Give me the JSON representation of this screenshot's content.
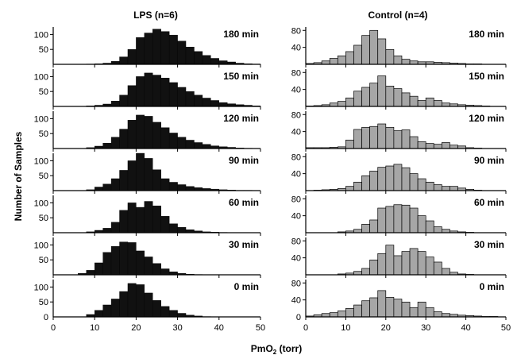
{
  "figure": {
    "y_label": "Number of Samples",
    "x_label_main": "PmO",
    "x_label_sub": "2",
    "x_label_rest": " (torr)"
  },
  "chart_data": [
    {
      "type": "bar",
      "title": "LPS (n=6)",
      "fill": "#111111",
      "bin_width": 2,
      "xlim": [
        0,
        50
      ],
      "ylim": [
        0,
        125
      ],
      "xticks": [
        0,
        10,
        20,
        30,
        40,
        50
      ],
      "yticks": [
        50,
        100
      ],
      "panels": [
        {
          "label": "180 min",
          "bin_starts": [
            0,
            2,
            4,
            6,
            8,
            10,
            12,
            14,
            16,
            18,
            20,
            22,
            24,
            26,
            28,
            30,
            32,
            34,
            36,
            38,
            40,
            42,
            44,
            46,
            48
          ],
          "values": [
            0,
            0,
            0,
            0,
            1,
            2,
            4,
            10,
            25,
            50,
            90,
            105,
            118,
            110,
            98,
            78,
            58,
            43,
            30,
            20,
            12,
            8,
            4,
            2,
            1
          ]
        },
        {
          "label": "150 min",
          "bin_starts": [
            0,
            2,
            4,
            6,
            8,
            10,
            12,
            14,
            16,
            18,
            20,
            22,
            24,
            26,
            28,
            30,
            32,
            34,
            36,
            38,
            40,
            42,
            44,
            46,
            48
          ],
          "values": [
            0,
            0,
            0,
            0,
            2,
            4,
            8,
            18,
            38,
            70,
            100,
            112,
            105,
            95,
            80,
            64,
            50,
            38,
            28,
            20,
            13,
            9,
            6,
            4,
            2
          ]
        },
        {
          "label": "120 min",
          "bin_starts": [
            0,
            2,
            4,
            6,
            8,
            10,
            12,
            14,
            16,
            18,
            20,
            22,
            24,
            26,
            28,
            30,
            32,
            34,
            36,
            38,
            40,
            42,
            44,
            46,
            48
          ],
          "values": [
            0,
            0,
            0,
            0,
            3,
            8,
            18,
            38,
            65,
            95,
            112,
            108,
            88,
            70,
            52,
            38,
            28,
            20,
            14,
            9,
            6,
            4,
            2,
            1,
            0
          ]
        },
        {
          "label": "90 min",
          "bin_starts": [
            0,
            2,
            4,
            6,
            8,
            10,
            12,
            14,
            16,
            18,
            20,
            22,
            24,
            26,
            28,
            30,
            32,
            34,
            36,
            38,
            40,
            42,
            44,
            46,
            48
          ],
          "values": [
            0,
            0,
            0,
            0,
            3,
            12,
            22,
            40,
            68,
            100,
            125,
            108,
            70,
            40,
            28,
            20,
            14,
            10,
            7,
            5,
            3,
            2,
            1,
            1,
            0
          ]
        },
        {
          "label": "60 min",
          "bin_starts": [
            0,
            2,
            4,
            6,
            8,
            10,
            12,
            14,
            16,
            18,
            20,
            22,
            24,
            26,
            28,
            30,
            32,
            34,
            36,
            38,
            40,
            42,
            44,
            46,
            48
          ],
          "values": [
            0,
            0,
            0,
            0,
            3,
            8,
            15,
            35,
            75,
            100,
            85,
            105,
            90,
            55,
            30,
            18,
            10,
            6,
            3,
            2,
            1,
            0,
            0,
            0,
            0
          ]
        },
        {
          "label": "30 min",
          "bin_starts": [
            0,
            2,
            4,
            6,
            8,
            10,
            12,
            14,
            16,
            18,
            20,
            22,
            24,
            26,
            28,
            30,
            32,
            34,
            36,
            38,
            40,
            42,
            44,
            46,
            48
          ],
          "values": [
            0,
            0,
            0,
            5,
            15,
            40,
            75,
            95,
            110,
            108,
            80,
            60,
            38,
            20,
            10,
            5,
            2,
            1,
            0,
            0,
            0,
            0,
            0,
            0,
            0
          ]
        },
        {
          "label": "0 min",
          "bin_starts": [
            0,
            2,
            4,
            6,
            8,
            10,
            12,
            14,
            16,
            18,
            20,
            22,
            24,
            26,
            28,
            30,
            32,
            34,
            36,
            38,
            40,
            42,
            44,
            46,
            48
          ],
          "values": [
            0,
            0,
            0,
            0,
            8,
            22,
            40,
            60,
            85,
            112,
            108,
            80,
            55,
            35,
            22,
            12,
            6,
            3,
            1,
            0,
            0,
            0,
            0,
            0,
            0
          ]
        }
      ]
    },
    {
      "type": "bar",
      "title": "Control (n=4)",
      "fill": "#a6a6a6",
      "bin_width": 2,
      "xlim": [
        0,
        50
      ],
      "ylim": [
        0,
        88
      ],
      "xticks": [
        0,
        10,
        20,
        30,
        40,
        50
      ],
      "yticks": [
        40,
        80
      ],
      "panels": [
        {
          "label": "180 min",
          "bin_starts": [
            0,
            2,
            4,
            6,
            8,
            10,
            12,
            14,
            16,
            18,
            20,
            22,
            24,
            26,
            28,
            30,
            32,
            34,
            36,
            38,
            40,
            42,
            44,
            46,
            48
          ],
          "values": [
            2,
            4,
            8,
            14,
            20,
            30,
            45,
            68,
            80,
            60,
            35,
            20,
            12,
            8,
            6,
            6,
            5,
            4,
            3,
            2,
            1,
            1,
            0,
            0,
            0
          ]
        },
        {
          "label": "150 min",
          "bin_starts": [
            0,
            2,
            4,
            6,
            8,
            10,
            12,
            14,
            16,
            18,
            20,
            22,
            24,
            26,
            28,
            30,
            32,
            34,
            36,
            38,
            40,
            42,
            44,
            46,
            48
          ],
          "values": [
            1,
            2,
            4,
            8,
            12,
            20,
            36,
            45,
            55,
            72,
            48,
            42,
            32,
            24,
            14,
            20,
            14,
            8,
            6,
            4,
            3,
            2,
            1,
            0,
            0
          ]
        },
        {
          "label": "120 min",
          "bin_starts": [
            0,
            2,
            4,
            6,
            8,
            10,
            12,
            14,
            16,
            18,
            20,
            22,
            24,
            26,
            28,
            30,
            32,
            34,
            36,
            38,
            40,
            42,
            44,
            46,
            48
          ],
          "values": [
            2,
            2,
            2,
            3,
            4,
            20,
            45,
            50,
            52,
            58,
            50,
            42,
            44,
            28,
            16,
            12,
            10,
            14,
            8,
            6,
            2,
            1,
            0,
            0,
            0
          ]
        },
        {
          "label": "90 min",
          "bin_starts": [
            0,
            2,
            4,
            6,
            8,
            10,
            12,
            14,
            16,
            18,
            20,
            22,
            24,
            26,
            28,
            30,
            32,
            34,
            36,
            38,
            40,
            42,
            44,
            46,
            48
          ],
          "values": [
            0,
            1,
            2,
            3,
            5,
            10,
            20,
            35,
            46,
            55,
            58,
            62,
            54,
            40,
            28,
            20,
            14,
            10,
            10,
            6,
            3,
            1,
            0,
            0,
            0
          ]
        },
        {
          "label": "60 min",
          "bin_starts": [
            0,
            2,
            4,
            6,
            8,
            10,
            12,
            14,
            16,
            18,
            20,
            22,
            24,
            26,
            28,
            30,
            32,
            34,
            36,
            38,
            40,
            42,
            44,
            46,
            48
          ],
          "values": [
            0,
            0,
            0,
            0,
            2,
            4,
            8,
            20,
            30,
            58,
            62,
            66,
            65,
            58,
            40,
            28,
            14,
            8,
            4,
            2,
            1,
            0,
            0,
            0,
            0
          ]
        },
        {
          "label": "30 min",
          "bin_starts": [
            0,
            2,
            4,
            6,
            8,
            10,
            12,
            14,
            16,
            18,
            20,
            22,
            24,
            26,
            28,
            30,
            32,
            34,
            36,
            38,
            40,
            42,
            44,
            46,
            48
          ],
          "values": [
            0,
            0,
            0,
            0,
            2,
            4,
            8,
            15,
            35,
            50,
            70,
            45,
            55,
            62,
            55,
            42,
            30,
            15,
            6,
            2,
            1,
            0,
            0,
            0,
            0
          ]
        },
        {
          "label": "0 min",
          "bin_starts": [
            0,
            2,
            4,
            6,
            8,
            10,
            12,
            14,
            16,
            18,
            20,
            22,
            24,
            26,
            28,
            30,
            32,
            34,
            36,
            38,
            40,
            42,
            44,
            46,
            48
          ],
          "values": [
            2,
            5,
            8,
            10,
            14,
            20,
            28,
            38,
            45,
            62,
            46,
            42,
            35,
            22,
            35,
            22,
            12,
            8,
            6,
            4,
            3,
            2,
            1,
            1,
            0
          ]
        }
      ]
    }
  ]
}
